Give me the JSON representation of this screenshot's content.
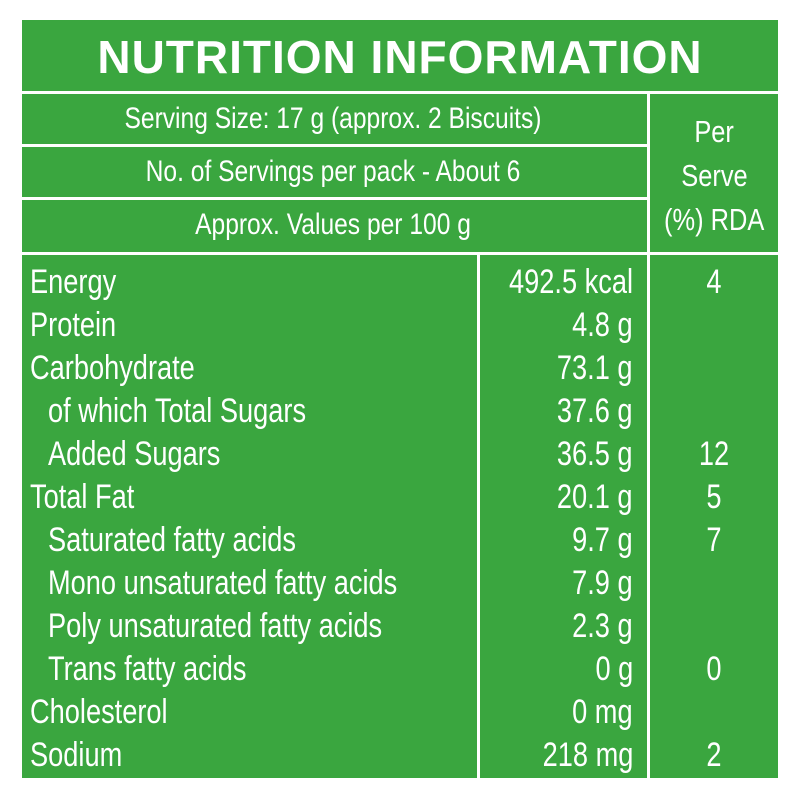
{
  "title": "NUTRITION INFORMATION",
  "header": {
    "serving_size": "Serving Size: 17 g (approx. 2 Biscuits)",
    "servings_per_pack": "No. of Servings per pack - About 6",
    "values_basis": "Approx. Values per 100 g",
    "rda_header": [
      "Per",
      "Serve",
      "(%) RDA"
    ]
  },
  "nutrients": [
    {
      "name": "Energy",
      "value": "492.5 kcal",
      "rda": "4",
      "sub": false
    },
    {
      "name": "Protein",
      "value": "4.8 g",
      "rda": "",
      "sub": false
    },
    {
      "name": "Carbohydrate",
      "value": "73.1 g",
      "rda": "",
      "sub": false
    },
    {
      "name": "of which Total Sugars",
      "value": "37.6 g",
      "rda": "",
      "sub": true
    },
    {
      "name": "Added Sugars",
      "value": "36.5 g",
      "rda": "12",
      "sub": true
    },
    {
      "name": "Total Fat",
      "value": "20.1 g",
      "rda": "5",
      "sub": false
    },
    {
      "name": "Saturated fatty acids",
      "value": "9.7 g",
      "rda": "7",
      "sub": true
    },
    {
      "name": "Mono unsaturated fatty acids",
      "value": "7.9 g",
      "rda": "",
      "sub": true
    },
    {
      "name": "Poly unsaturated fatty acids",
      "value": "2.3 g",
      "rda": "",
      "sub": true
    },
    {
      "name": "Trans fatty acids",
      "value": "0 g",
      "rda": "0",
      "sub": true
    },
    {
      "name": "Cholesterol",
      "value": "0 mg",
      "rda": "",
      "sub": false
    },
    {
      "name": "Sodium",
      "value": "218 mg",
      "rda": "2",
      "sub": false
    }
  ],
  "colors": {
    "background": "#3aa63f",
    "text": "#ffffff",
    "rules": "#ffffff"
  }
}
